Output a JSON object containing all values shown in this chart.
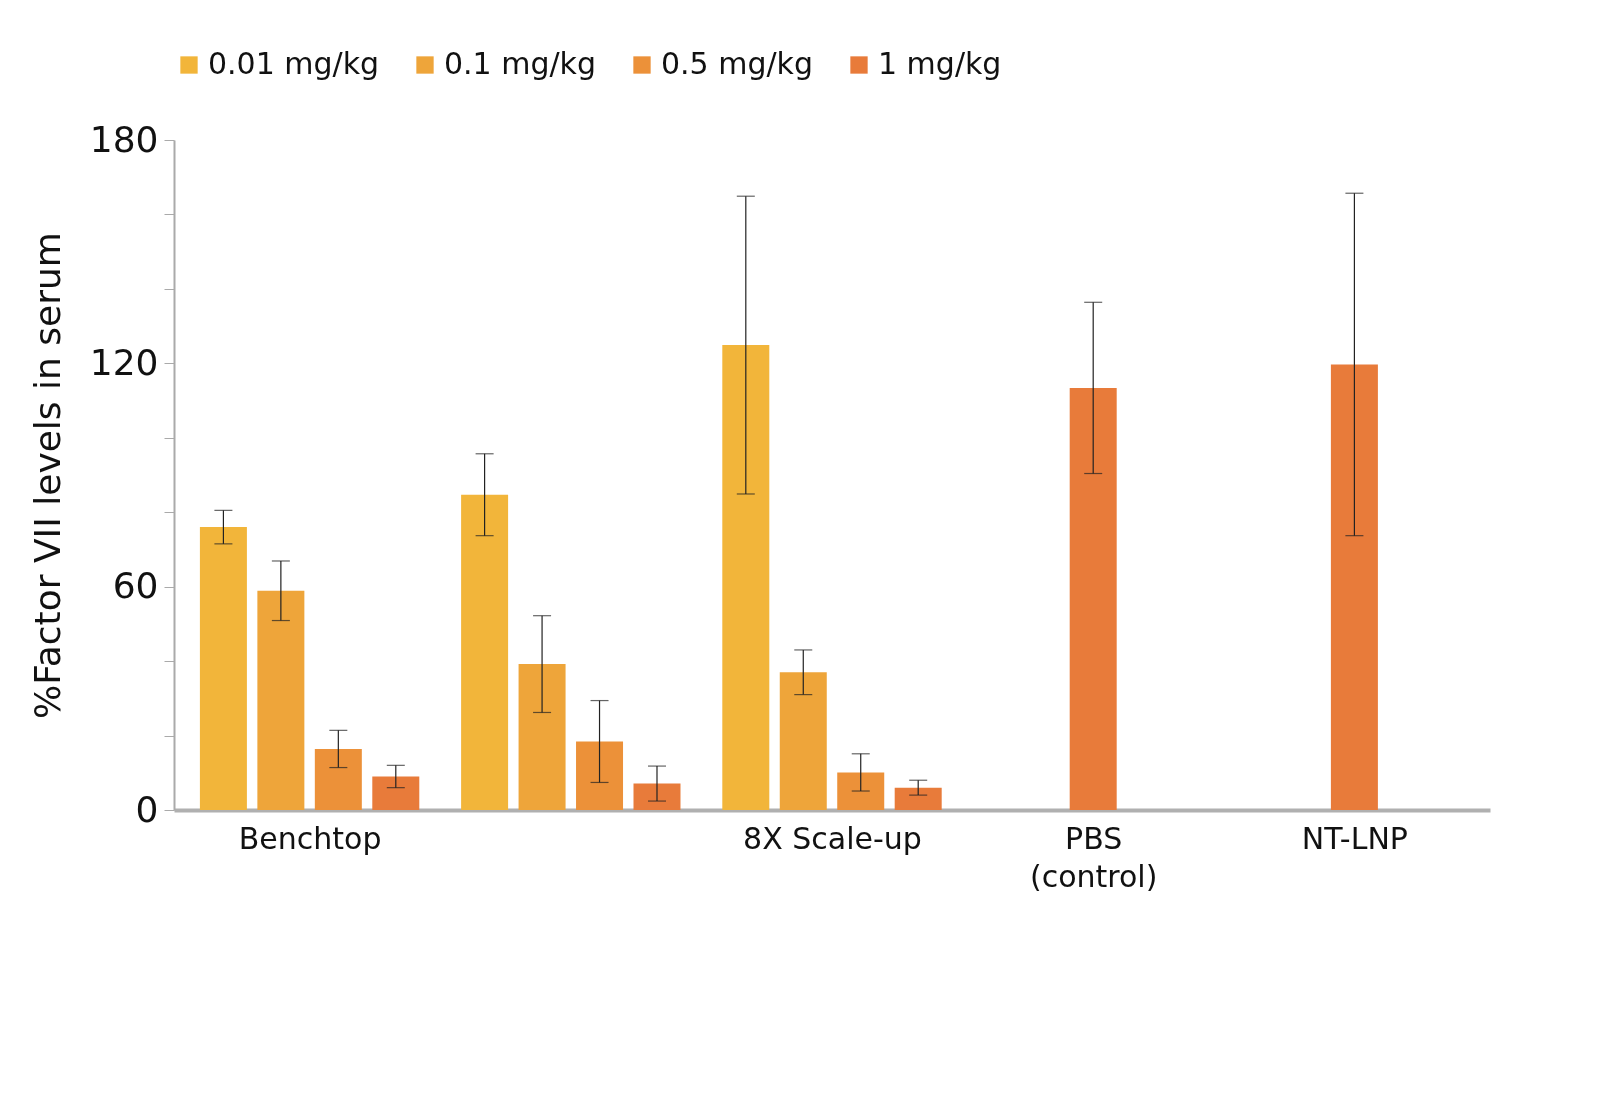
{
  "chart_data": {
    "type": "bar",
    "ylabel": "%Factor VII levels in serum",
    "categories": [
      "Benchtop",
      null,
      "8X Scale-up",
      "PBS\n(control)",
      "NT-LNP"
    ],
    "series": [
      {
        "name": "0.01 mg/kg",
        "color": "#f2b53a",
        "values": [
          76,
          84.7,
          124.9,
          null,
          null
        ],
        "errors": [
          4.5,
          11,
          40,
          null,
          null
        ]
      },
      {
        "name": "0.1 mg/kg",
        "color": "#eea53a",
        "values": [
          58.9,
          39.2,
          37,
          null,
          null
        ],
        "errors": [
          8,
          13,
          6,
          null,
          null
        ]
      },
      {
        "name": "0.5 mg/kg",
        "color": "#ec9139",
        "values": [
          16.4,
          18.4,
          10.1,
          null,
          null
        ],
        "errors": [
          5,
          11,
          5,
          null,
          null
        ]
      },
      {
        "name": "1 mg/kg",
        "color": "#e87b3a",
        "values": [
          9,
          7.1,
          6,
          113.4,
          119.7
        ],
        "errors": [
          3,
          4.7,
          2,
          23,
          46
        ]
      }
    ],
    "ylim": [
      0,
      180
    ],
    "yticks": [
      0,
      {
        "value": 20,
        "label": null
      },
      {
        "value": 40,
        "label": null
      },
      60,
      {
        "value": 80,
        "label": null
      },
      {
        "value": 100,
        "label": null
      },
      120,
      {
        "value": 140,
        "label": null
      },
      {
        "value": 160,
        "label": null
      },
      180
    ],
    "grid": false,
    "legend": "top"
  }
}
